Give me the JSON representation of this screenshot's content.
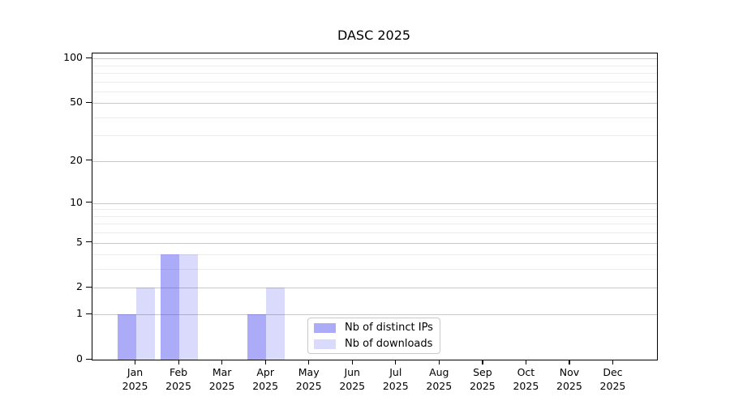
{
  "chart_data": {
    "type": "bar",
    "title": "DASC 2025",
    "categories": [
      "Jan",
      "Feb",
      "Mar",
      "Apr",
      "May",
      "Jun",
      "Jul",
      "Aug",
      "Sep",
      "Oct",
      "Nov",
      "Dec"
    ],
    "category_year": "2025",
    "series": [
      {
        "name": "Nb of distinct IPs",
        "color": "rgba(68,68,238,0.45)",
        "values": [
          1,
          4,
          0,
          1,
          0,
          0,
          0,
          0,
          0,
          0,
          0,
          0
        ]
      },
      {
        "name": "Nb of downloads",
        "color": "rgba(68,68,238,0.20)",
        "values": [
          2,
          4,
          0,
          2,
          0,
          0,
          0,
          0,
          0,
          0,
          0,
          0
        ]
      }
    ],
    "yscale": "symlog-ln1p",
    "ylim": [
      0,
      108
    ],
    "y_major_ticks": [
      100,
      50,
      20,
      10,
      5,
      2,
      1,
      0
    ],
    "y_minor_ticks": [
      3,
      4,
      6,
      7,
      8,
      9,
      30,
      40,
      60,
      70,
      80,
      90
    ],
    "grid": "horizontal major+minor",
    "legend_position": "inside lower-center",
    "colors": {
      "bar_base": "#4444ee",
      "major_grid": "#c8c8c8",
      "minor_grid": "#ebebeb",
      "axis": "#000000",
      "legend_border": "#c9c9c9",
      "background": "#ffffff"
    }
  }
}
